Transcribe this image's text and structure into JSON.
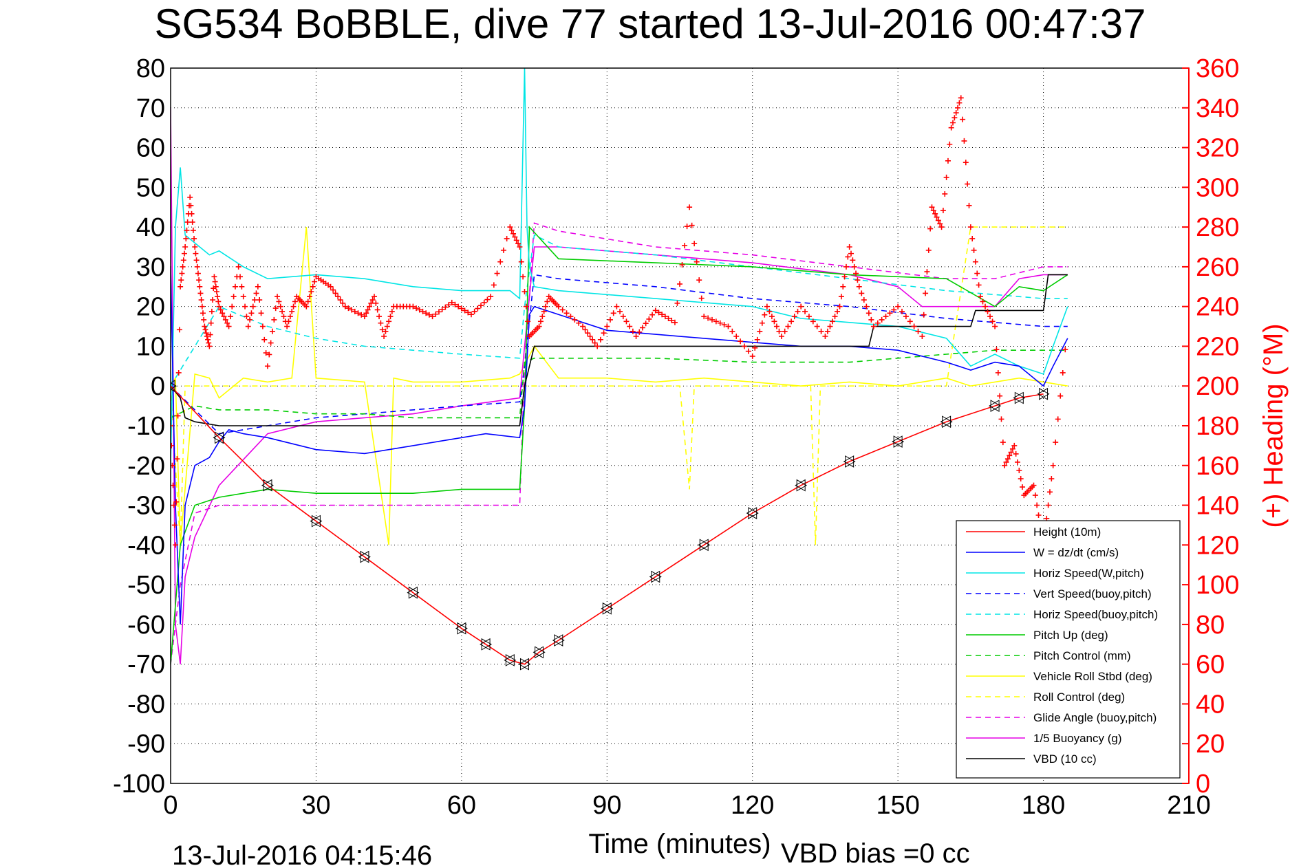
{
  "chart_data": {
    "type": "line",
    "title": "SG534 BoBBLE, dive 77 started 13-Jul-2016 00:47:37",
    "xlabel": "Time (minutes)",
    "ylabel": "",
    "y2label": "(+) Heading (°M)",
    "xlim": [
      0,
      210
    ],
    "ylim": [
      -100,
      80
    ],
    "y2lim": [
      0,
      360
    ],
    "grid": true,
    "legend_position": "bottom-right",
    "xticks": [
      "0",
      "30",
      "60",
      "90",
      "120",
      "150",
      "180",
      "210"
    ],
    "yticks": [
      "80",
      "70",
      "60",
      "50",
      "40",
      "30",
      "20",
      "10",
      "0",
      "-10",
      "-20",
      "-30",
      "-40",
      "-50",
      "-60",
      "-70",
      "-80",
      "-90",
      "-100"
    ],
    "y2ticks": [
      "360",
      "340",
      "320",
      "300",
      "280",
      "260",
      "240",
      "220",
      "200",
      "180",
      "160",
      "140",
      "120",
      "100",
      "80",
      "60",
      "40",
      "20",
      "0"
    ],
    "footer_left": "13-Jul-2016 04:15:46",
    "footer_center": "VBD bias =0 cc",
    "series": [
      {
        "name": "Height (10m)",
        "color": "#ff0000",
        "dash": "solid",
        "x": [
          0,
          10,
          20,
          30,
          40,
          50,
          60,
          65,
          70,
          73,
          76,
          80,
          90,
          100,
          110,
          120,
          130,
          140,
          150,
          160,
          170,
          175,
          180
        ],
        "y": [
          0,
          -13,
          -25,
          -34,
          -43,
          -52,
          -61,
          -65,
          -69,
          -70,
          -67,
          -64,
          -56,
          -48,
          -40,
          -32,
          -25,
          -19,
          -14,
          -9,
          -5,
          -3,
          -2
        ]
      },
      {
        "name": "W = dz/dt (cm/s)",
        "color": "#0000ff",
        "dash": "solid",
        "x": [
          0,
          1,
          2,
          3,
          5,
          8,
          10,
          12,
          15,
          20,
          30,
          40,
          50,
          60,
          65,
          72,
          73,
          74,
          75,
          80,
          90,
          100,
          110,
          120,
          130,
          140,
          150,
          160,
          165,
          170,
          175,
          180,
          182,
          185
        ],
        "y": [
          30,
          -30,
          -60,
          -30,
          -20,
          -18,
          -14,
          -11,
          -12,
          -13,
          -16,
          -17,
          -15,
          -13,
          -12,
          -13,
          -5,
          18,
          20,
          18,
          14,
          13,
          12,
          11,
          10,
          10,
          9,
          6,
          4,
          6,
          5,
          0,
          5,
          12
        ]
      },
      {
        "name": "Horiz Speed(W,pitch)",
        "color": "#00e5e5",
        "dash": "solid",
        "x": [
          0,
          1,
          2,
          3,
          5,
          8,
          10,
          15,
          20,
          30,
          40,
          50,
          60,
          70,
          72,
          73,
          73.5,
          74,
          75,
          80,
          90,
          100,
          110,
          120,
          130,
          140,
          150,
          160,
          165,
          170,
          175,
          180,
          182,
          185
        ],
        "y": [
          -20,
          40,
          55,
          38,
          36,
          33,
          34,
          30,
          27,
          28,
          27,
          25,
          24,
          24,
          22,
          80,
          40,
          30,
          25,
          24,
          23,
          22,
          21,
          20,
          17,
          16,
          15,
          12,
          5,
          8,
          5,
          3,
          10,
          20
        ]
      },
      {
        "name": "Vert Speed(buoy,pitch)",
        "color": "#0000ff",
        "dash": "8,6",
        "x": [
          0,
          10,
          20,
          30,
          40,
          50,
          60,
          72,
          73,
          75,
          80,
          100,
          120,
          140,
          160,
          180,
          185
        ],
        "y": [
          0,
          -12,
          -10,
          -8,
          -7,
          -6,
          -5,
          -4,
          5,
          28,
          27,
          25,
          22,
          20,
          17,
          15,
          15
        ]
      },
      {
        "name": "Horiz Speed(buoy,pitch)",
        "color": "#00e5e5",
        "dash": "8,6",
        "x": [
          0,
          10,
          20,
          30,
          40,
          50,
          60,
          72,
          73,
          75,
          80,
          100,
          120,
          140,
          160,
          180,
          185
        ],
        "y": [
          0,
          20,
          15,
          12,
          10,
          9,
          8,
          7,
          20,
          38,
          35,
          33,
          30,
          27,
          24,
          22,
          22
        ]
      },
      {
        "name": "Pitch Up (deg)",
        "color": "#00cc00",
        "dash": "solid",
        "x": [
          0,
          2,
          5,
          10,
          15,
          20,
          30,
          40,
          50,
          60,
          72,
          73,
          74,
          80,
          100,
          120,
          140,
          160,
          170,
          175,
          180,
          185
        ],
        "y": [
          -70,
          -40,
          -30,
          -28,
          -27,
          -26,
          -27,
          -27,
          -27,
          -26,
          -26,
          -5,
          40,
          32,
          31,
          30,
          28,
          27,
          20,
          25,
          24,
          28
        ]
      },
      {
        "name": "Pitch Control (mm)",
        "color": "#00cc00",
        "dash": "8,6",
        "x": [
          0,
          5,
          10,
          20,
          30,
          40,
          50,
          60,
          72,
          73,
          75,
          80,
          100,
          120,
          140,
          160,
          170,
          185
        ],
        "y": [
          -8,
          -5,
          -6,
          -6,
          -7,
          -7,
          -8,
          -8,
          -8,
          6,
          7,
          7,
          7,
          6,
          6,
          8,
          9,
          9
        ]
      },
      {
        "name": "Vehicle Roll Stbd (deg)",
        "color": "#ffff00",
        "dash": "solid",
        "x": [
          0,
          1,
          2,
          5,
          8,
          10,
          15,
          20,
          25,
          28,
          30,
          40,
          45,
          46,
          50,
          60,
          70,
          72,
          75,
          80,
          90,
          100,
          110,
          120,
          130,
          140,
          150,
          160,
          165,
          170,
          175,
          180,
          185
        ],
        "y": [
          0,
          2,
          -40,
          3,
          2,
          -3,
          2,
          1,
          2,
          40,
          2,
          1,
          -40,
          2,
          1,
          1,
          2,
          3,
          10,
          2,
          2,
          1,
          2,
          1,
          0,
          1,
          0,
          2,
          0,
          1,
          2,
          1,
          0
        ]
      },
      {
        "name": "Roll Control (deg)",
        "color": "#ffff00",
        "dash": "8,6",
        "x": [
          0,
          2,
          3,
          5,
          10,
          20,
          40,
          60,
          70,
          75,
          80,
          100,
          105,
          107,
          108,
          120,
          132,
          133,
          134,
          150,
          160,
          165,
          166,
          170,
          180,
          185
        ],
        "y": [
          0,
          -40,
          0,
          0,
          0,
          0,
          0,
          0,
          0,
          0,
          0,
          0,
          0,
          -26,
          0,
          0,
          0,
          -40,
          0,
          0,
          0,
          40,
          40,
          40,
          40,
          40
        ]
      },
      {
        "name": "Glide Angle (buoy,pitch)",
        "color": "#e600e6",
        "dash": "8,6",
        "x": [
          0,
          2,
          5,
          10,
          20,
          30,
          40,
          50,
          60,
          72,
          73,
          75,
          80,
          100,
          120,
          140,
          160,
          170,
          180,
          185
        ],
        "y": [
          -70,
          -50,
          -32,
          -30,
          -30,
          -30,
          -30,
          -30,
          -30,
          -30,
          5,
          41,
          39,
          35,
          33,
          30,
          27,
          27,
          30,
          30
        ]
      },
      {
        "name": "1/5 Buoyancy (g)",
        "color": "#e600e6",
        "dash": "solid",
        "x": [
          0,
          1,
          2,
          3,
          5,
          10,
          20,
          30,
          40,
          50,
          60,
          72,
          73,
          75,
          80,
          100,
          120,
          140,
          150,
          155,
          160,
          165,
          170,
          175,
          180,
          185
        ],
        "y": [
          70,
          -60,
          -70,
          -48,
          -38,
          -25,
          -12,
          -9,
          -8,
          -7,
          -5,
          -3,
          10,
          35,
          35,
          33,
          31,
          28,
          25,
          20,
          20,
          20,
          20,
          27,
          28,
          28
        ]
      },
      {
        "name": "VBD (10 cc)",
        "color": "#000000",
        "dash": "solid",
        "x": [
          0,
          2,
          3,
          5,
          10,
          20,
          30,
          40,
          50,
          60,
          72,
          73,
          75,
          80,
          100,
          120,
          144,
          145,
          160,
          165,
          166,
          180,
          181,
          185
        ],
        "y": [
          0,
          -3,
          -8,
          -9,
          -10,
          -10,
          -10,
          -10,
          -10,
          -10,
          -10,
          0,
          10,
          10,
          10,
          10,
          10,
          15,
          15,
          15,
          19,
          19,
          28,
          28
        ]
      },
      {
        "name": "(+) Heading (°M)",
        "color": "#ff0000",
        "marker": "+",
        "axis": "right",
        "x": [
          0,
          1,
          2,
          3,
          4,
          5,
          6,
          7,
          8,
          9,
          10,
          12,
          14,
          16,
          18,
          20,
          22,
          24,
          26,
          28,
          30,
          33,
          36,
          40,
          42,
          44,
          46,
          50,
          54,
          58,
          62,
          66,
          70,
          72,
          74,
          76,
          78,
          80,
          85,
          88,
          92,
          96,
          100,
          104,
          107,
          110,
          115,
          120,
          123,
          126,
          130,
          135,
          138,
          140,
          142,
          145,
          150,
          155,
          157,
          159,
          161,
          163,
          165,
          167,
          170,
          172,
          174,
          176,
          178,
          180,
          182,
          185
        ],
        "y": [
          180,
          120,
          250,
          270,
          295,
          270,
          250,
          230,
          220,
          255,
          240,
          230,
          260,
          230,
          250,
          210,
          245,
          230,
          245,
          240,
          255,
          250,
          240,
          235,
          245,
          225,
          240,
          240,
          235,
          242,
          236,
          245,
          280,
          270,
          225,
          230,
          245,
          240,
          230,
          220,
          240,
          225,
          238,
          232,
          290,
          235,
          230,
          215,
          240,
          225,
          240,
          225,
          240,
          270,
          250,
          230,
          240,
          225,
          290,
          280,
          330,
          345,
          280,
          245,
          230,
          160,
          170,
          145,
          150,
          120,
          160,
          230
        ]
      }
    ]
  }
}
